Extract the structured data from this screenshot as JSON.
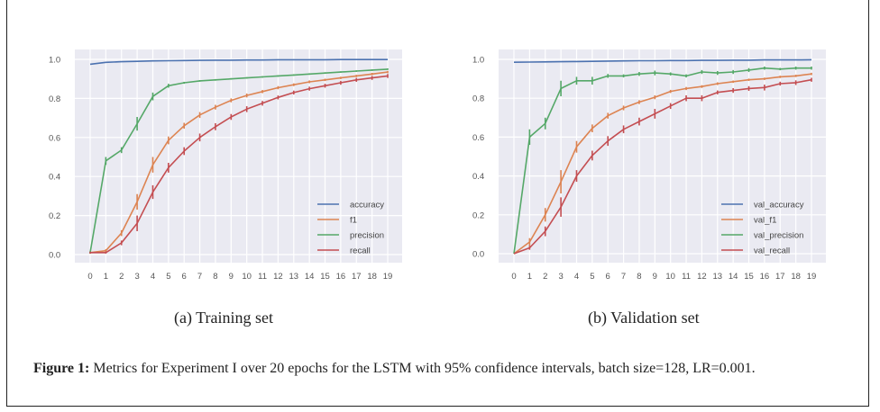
{
  "figure": {
    "label": "Figure 1:",
    "caption": " Metrics for Experiment I over 20 epochs for the LSTM with 95% confidence intervals, batch size=128, LR=0.001."
  },
  "chart_data": [
    {
      "type": "line",
      "subcaption": "(a) Training set",
      "title": "",
      "xlabel": "",
      "ylabel": "",
      "x": [
        0,
        1,
        2,
        3,
        4,
        5,
        6,
        7,
        8,
        9,
        10,
        11,
        12,
        13,
        14,
        15,
        16,
        17,
        18,
        19
      ],
      "xticks": [
        "0",
        "1",
        "2",
        "3",
        "4",
        "5",
        "6",
        "7",
        "8",
        "9",
        "10",
        "11",
        "12",
        "13",
        "14",
        "15",
        "16",
        "17",
        "18",
        "19"
      ],
      "yticks": [
        "0.0",
        "0.2",
        "0.4",
        "0.6",
        "0.8",
        "1.0"
      ],
      "ylim": [
        -0.04,
        1.05
      ],
      "grid": true,
      "legend_position": "lower-right",
      "error_bars": "95% confidence intervals",
      "series": [
        {
          "name": "accuracy",
          "color": "#4c72b0",
          "values": [
            0.975,
            0.985,
            0.988,
            0.99,
            0.992,
            0.993,
            0.994,
            0.995,
            0.996,
            0.996,
            0.997,
            0.997,
            0.998,
            0.998,
            0.998,
            0.998,
            0.999,
            0.999,
            0.999,
            0.999
          ],
          "ci": [
            0.002,
            0.001,
            0.001,
            0.001,
            0.001,
            0.001,
            0.001,
            0.001,
            0.001,
            0.001,
            0.001,
            0.001,
            0.001,
            0.001,
            0.001,
            0.001,
            0.001,
            0.001,
            0.001,
            0.001
          ]
        },
        {
          "name": "f1",
          "color": "#dd8452",
          "values": [
            0.01,
            0.02,
            0.11,
            0.27,
            0.46,
            0.585,
            0.66,
            0.715,
            0.755,
            0.79,
            0.815,
            0.835,
            0.855,
            0.87,
            0.885,
            0.895,
            0.905,
            0.915,
            0.925,
            0.935
          ],
          "ci": [
            0.005,
            0.008,
            0.015,
            0.04,
            0.04,
            0.02,
            0.015,
            0.015,
            0.012,
            0.01,
            0.01,
            0.008,
            0.008,
            0.007,
            0.007,
            0.006,
            0.006,
            0.006,
            0.006,
            0.006
          ]
        },
        {
          "name": "precision",
          "color": "#55a868",
          "values": [
            0.01,
            0.48,
            0.535,
            0.67,
            0.81,
            0.865,
            0.88,
            0.89,
            0.895,
            0.9,
            0.905,
            0.91,
            0.915,
            0.92,
            0.925,
            0.93,
            0.935,
            0.94,
            0.945,
            0.95
          ],
          "ci": [
            0.005,
            0.02,
            0.015,
            0.035,
            0.02,
            0.01,
            0.005,
            0.004,
            0.004,
            0.004,
            0.004,
            0.004,
            0.004,
            0.004,
            0.004,
            0.004,
            0.004,
            0.004,
            0.004,
            0.004
          ]
        },
        {
          "name": "recall",
          "color": "#c44e52",
          "values": [
            0.01,
            0.01,
            0.06,
            0.16,
            0.32,
            0.445,
            0.53,
            0.6,
            0.655,
            0.705,
            0.745,
            0.775,
            0.805,
            0.83,
            0.85,
            0.865,
            0.88,
            0.895,
            0.905,
            0.915
          ],
          "ci": [
            0.005,
            0.005,
            0.012,
            0.04,
            0.035,
            0.025,
            0.02,
            0.02,
            0.018,
            0.015,
            0.015,
            0.012,
            0.01,
            0.01,
            0.01,
            0.01,
            0.01,
            0.01,
            0.01,
            0.01
          ]
        }
      ]
    },
    {
      "type": "line",
      "subcaption": "(b) Validation set",
      "title": "",
      "xlabel": "",
      "ylabel": "",
      "x": [
        0,
        1,
        2,
        3,
        4,
        5,
        6,
        7,
        8,
        9,
        10,
        11,
        12,
        13,
        14,
        15,
        16,
        17,
        18,
        19
      ],
      "xticks": [
        "0",
        "1",
        "2",
        "3",
        "4",
        "5",
        "6",
        "7",
        "8",
        "9",
        "10",
        "11",
        "12",
        "13",
        "14",
        "15",
        "16",
        "17",
        "18",
        "19"
      ],
      "yticks": [
        "0.0",
        "0.2",
        "0.4",
        "0.6",
        "0.8",
        "1.0"
      ],
      "ylim": [
        -0.04,
        1.05
      ],
      "grid": true,
      "legend_position": "lower-right",
      "error_bars": "95% confidence intervals",
      "series": [
        {
          "name": "val_accuracy",
          "color": "#4c72b0",
          "values": [
            0.985,
            0.986,
            0.987,
            0.988,
            0.989,
            0.99,
            0.991,
            0.992,
            0.993,
            0.993,
            0.994,
            0.994,
            0.995,
            0.995,
            0.996,
            0.996,
            0.997,
            0.997,
            0.997,
            0.998
          ],
          "ci": [
            0.001,
            0.001,
            0.001,
            0.001,
            0.001,
            0.001,
            0.001,
            0.001,
            0.001,
            0.001,
            0.001,
            0.001,
            0.001,
            0.001,
            0.001,
            0.001,
            0.001,
            0.001,
            0.001,
            0.001
          ]
        },
        {
          "name": "val_f1",
          "color": "#dd8452",
          "values": [
            0.0,
            0.06,
            0.2,
            0.37,
            0.55,
            0.645,
            0.71,
            0.75,
            0.78,
            0.805,
            0.835,
            0.85,
            0.86,
            0.875,
            0.885,
            0.895,
            0.9,
            0.91,
            0.915,
            0.925
          ],
          "ci": [
            0.0,
            0.02,
            0.035,
            0.06,
            0.03,
            0.02,
            0.015,
            0.012,
            0.01,
            0.01,
            0.008,
            0.008,
            0.007,
            0.007,
            0.006,
            0.006,
            0.006,
            0.006,
            0.006,
            0.006
          ]
        },
        {
          "name": "val_precision",
          "color": "#55a868",
          "values": [
            0.0,
            0.6,
            0.67,
            0.85,
            0.89,
            0.89,
            0.915,
            0.915,
            0.925,
            0.93,
            0.925,
            0.915,
            0.935,
            0.93,
            0.935,
            0.945,
            0.955,
            0.95,
            0.955,
            0.955
          ],
          "ci": [
            0.0,
            0.04,
            0.03,
            0.04,
            0.02,
            0.02,
            0.01,
            0.008,
            0.01,
            0.012,
            0.008,
            0.008,
            0.01,
            0.01,
            0.01,
            0.01,
            0.008,
            0.006,
            0.008,
            0.008
          ]
        },
        {
          "name": "val_recall",
          "color": "#c44e52",
          "values": [
            0.0,
            0.03,
            0.115,
            0.24,
            0.4,
            0.505,
            0.58,
            0.64,
            0.68,
            0.72,
            0.76,
            0.8,
            0.8,
            0.83,
            0.84,
            0.85,
            0.855,
            0.875,
            0.88,
            0.895
          ],
          "ci": [
            0.0,
            0.01,
            0.025,
            0.05,
            0.03,
            0.025,
            0.025,
            0.02,
            0.02,
            0.025,
            0.015,
            0.015,
            0.015,
            0.01,
            0.012,
            0.012,
            0.015,
            0.01,
            0.012,
            0.01
          ]
        }
      ]
    }
  ]
}
